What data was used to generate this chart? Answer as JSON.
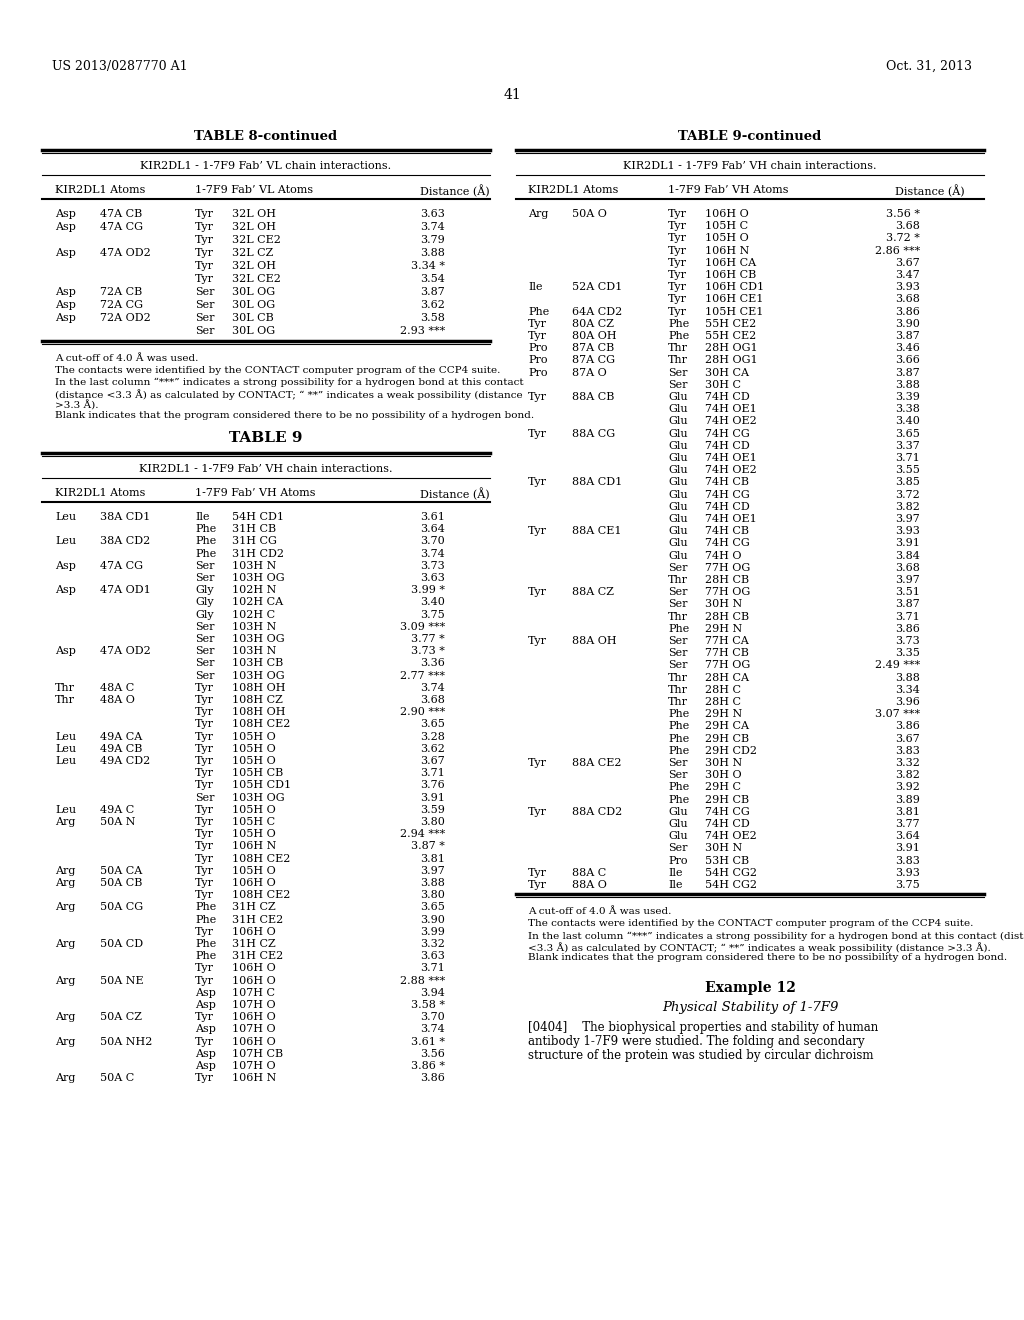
{
  "header_left": "US 2013/0287770 A1",
  "header_right": "Oct. 31, 2013",
  "page_number": "41",
  "bg_color": "#ffffff",
  "table8_title": "TABLE 8-continued",
  "table8_subtitle": "KIR2DL1 - 1-7F9 Fab’ VL chain interactions.",
  "table9_cont_title": "TABLE 9-continued",
  "table9_cont_subtitle": "KIR2DL1 - 1-7F9 Fab’ VH chain interactions.",
  "col_hdr_kir": "KIR2DL1 Atoms",
  "col_hdr_fab_vl": "1-7F9 Fab’ VL Atoms",
  "col_hdr_fab_vh": "1-7F9 Fab’ VH Atoms",
  "col_hdr_dist": "Distance (Å)",
  "table8_rows": [
    [
      "Asp",
      "47A CB",
      "Tyr",
      "32L OH",
      "3.63"
    ],
    [
      "Asp",
      "47A CG",
      "Tyr",
      "32L OH",
      "3.74"
    ],
    [
      "",
      "",
      "Tyr",
      "32L CE2",
      "3.79"
    ],
    [
      "Asp",
      "47A OD2",
      "Tyr",
      "32L CZ",
      "3.88"
    ],
    [
      "",
      "",
      "Tyr",
      "32L OH",
      "3.34 *"
    ],
    [
      "",
      "",
      "Tyr",
      "32L CE2",
      "3.54"
    ],
    [
      "Asp",
      "72A CB",
      "Ser",
      "30L OG",
      "3.87"
    ],
    [
      "Asp",
      "72A CG",
      "Ser",
      "30L OG",
      "3.62"
    ],
    [
      "Asp",
      "72A OD2",
      "Ser",
      "30L CB",
      "3.58"
    ],
    [
      "",
      "",
      "Ser",
      "30L OG",
      "2.93 ***"
    ]
  ],
  "table8_fn1": "A cut-off of 4.0 Å was used.",
  "table8_fn2": "The contacts were identified by the CONTACT computer program of the CCP4 suite.",
  "table8_fn3a": "In the last column “***” indicates a strong possibility for a hydrogen bond at this contact",
  "table8_fn3b": "(distance <3.3 Å) as calculated by CONTACT; “ **” indicates a weak possibility (distance",
  "table8_fn3c": ">3.3 Å).",
  "table8_fn4": "Blank indicates that the program considered there to be no possibility of a hydrogen bond.",
  "table9_title": "TABLE 9",
  "table9_subtitle": "KIR2DL1 - 1-7F9 Fab’ VH chain interactions.",
  "table9_left_rows": [
    [
      "Leu",
      "38A CD1",
      "Ile",
      "54H CD1",
      "3.61"
    ],
    [
      "",
      "",
      "Phe",
      "31H CB",
      "3.64"
    ],
    [
      "Leu",
      "38A CD2",
      "Phe",
      "31H CG",
      "3.70"
    ],
    [
      "",
      "",
      "Phe",
      "31H CD2",
      "3.74"
    ],
    [
      "Asp",
      "47A CG",
      "Ser",
      "103H N",
      "3.73"
    ],
    [
      "",
      "",
      "Ser",
      "103H OG",
      "3.63"
    ],
    [
      "Asp",
      "47A OD1",
      "Gly",
      "102H N",
      "3.99 *"
    ],
    [
      "",
      "",
      "Gly",
      "102H CA",
      "3.40"
    ],
    [
      "",
      "",
      "Gly",
      "102H C",
      "3.75"
    ],
    [
      "",
      "",
      "Ser",
      "103H N",
      "3.09 ***"
    ],
    [
      "",
      "",
      "Ser",
      "103H OG",
      "3.77 *"
    ],
    [
      "Asp",
      "47A OD2",
      "Ser",
      "103H N",
      "3.73 *"
    ],
    [
      "",
      "",
      "Ser",
      "103H CB",
      "3.36"
    ],
    [
      "",
      "",
      "Ser",
      "103H OG",
      "2.77 ***"
    ],
    [
      "Thr",
      "48A C",
      "Tyr",
      "108H OH",
      "3.74"
    ],
    [
      "Thr",
      "48A O",
      "Tyr",
      "108H CZ",
      "3.68"
    ],
    [
      "",
      "",
      "Tyr",
      "108H OH",
      "2.90 ***"
    ],
    [
      "",
      "",
      "Tyr",
      "108H CE2",
      "3.65"
    ],
    [
      "Leu",
      "49A CA",
      "Tyr",
      "105H O",
      "3.28"
    ],
    [
      "Leu",
      "49A CB",
      "Tyr",
      "105H O",
      "3.62"
    ],
    [
      "Leu",
      "49A CD2",
      "Tyr",
      "105H O",
      "3.67"
    ],
    [
      "",
      "",
      "Tyr",
      "105H CB",
      "3.71"
    ],
    [
      "",
      "",
      "Tyr",
      "105H CD1",
      "3.76"
    ],
    [
      "",
      "",
      "Ser",
      "103H OG",
      "3.91"
    ],
    [
      "Leu",
      "49A C",
      "Tyr",
      "105H O",
      "3.59"
    ],
    [
      "Arg",
      "50A N",
      "Tyr",
      "105H C",
      "3.80"
    ],
    [
      "",
      "",
      "Tyr",
      "105H O",
      "2.94 ***"
    ],
    [
      "",
      "",
      "Tyr",
      "106H N",
      "3.87 *"
    ],
    [
      "",
      "",
      "Tyr",
      "108H CE2",
      "3.81"
    ],
    [
      "Arg",
      "50A CA",
      "Tyr",
      "105H O",
      "3.97"
    ],
    [
      "Arg",
      "50A CB",
      "Tyr",
      "106H O",
      "3.88"
    ],
    [
      "",
      "",
      "Tyr",
      "108H CE2",
      "3.80"
    ],
    [
      "Arg",
      "50A CG",
      "Phe",
      "31H CZ",
      "3.65"
    ],
    [
      "",
      "",
      "Phe",
      "31H CE2",
      "3.90"
    ],
    [
      "",
      "",
      "Tyr",
      "106H O",
      "3.99"
    ],
    [
      "Arg",
      "50A CD",
      "Phe",
      "31H CZ",
      "3.32"
    ],
    [
      "",
      "",
      "Phe",
      "31H CE2",
      "3.63"
    ],
    [
      "",
      "",
      "Tyr",
      "106H O",
      "3.71"
    ],
    [
      "Arg",
      "50A NE",
      "Tyr",
      "106H O",
      "2.88 ***"
    ],
    [
      "",
      "",
      "Asp",
      "107H C",
      "3.94"
    ],
    [
      "",
      "",
      "Asp",
      "107H O",
      "3.58 *"
    ],
    [
      "Arg",
      "50A CZ",
      "Tyr",
      "106H O",
      "3.70"
    ],
    [
      "",
      "",
      "Asp",
      "107H O",
      "3.74"
    ],
    [
      "Arg",
      "50A NH2",
      "Tyr",
      "106H O",
      "3.61 *"
    ],
    [
      "",
      "",
      "Asp",
      "107H CB",
      "3.56"
    ],
    [
      "",
      "",
      "Asp",
      "107H O",
      "3.86 *"
    ],
    [
      "Arg",
      "50A C",
      "Tyr",
      "106H N",
      "3.86"
    ]
  ],
  "table9_right_rows": [
    [
      "Arg",
      "50A O",
      "Tyr",
      "106H O",
      "3.56 *"
    ],
    [
      "",
      "",
      "Tyr",
      "105H C",
      "3.68"
    ],
    [
      "",
      "",
      "Tyr",
      "105H O",
      "3.72 *"
    ],
    [
      "",
      "",
      "Tyr",
      "106H N",
      "2.86 ***"
    ],
    [
      "",
      "",
      "Tyr",
      "106H CA",
      "3.67"
    ],
    [
      "",
      "",
      "Tyr",
      "106H CB",
      "3.47"
    ],
    [
      "Ile",
      "52A CD1",
      "Tyr",
      "106H CD1",
      "3.93"
    ],
    [
      "",
      "",
      "Tyr",
      "106H CE1",
      "3.68"
    ],
    [
      "Phe",
      "64A CD2",
      "Tyr",
      "105H CE1",
      "3.86"
    ],
    [
      "Tyr",
      "80A CZ",
      "Phe",
      "55H CE2",
      "3.90"
    ],
    [
      "Tyr",
      "80A OH",
      "Phe",
      "55H CE2",
      "3.87"
    ],
    [
      "Pro",
      "87A CB",
      "Thr",
      "28H OG1",
      "3.46"
    ],
    [
      "Pro",
      "87A CG",
      "Thr",
      "28H OG1",
      "3.66"
    ],
    [
      "Pro",
      "87A O",
      "Ser",
      "30H CA",
      "3.87"
    ],
    [
      "",
      "",
      "Ser",
      "30H C",
      "3.88"
    ],
    [
      "Tyr",
      "88A CB",
      "Glu",
      "74H CD",
      "3.39"
    ],
    [
      "",
      "",
      "Glu",
      "74H OE1",
      "3.38"
    ],
    [
      "",
      "",
      "Glu",
      "74H OE2",
      "3.40"
    ],
    [
      "Tyr",
      "88A CG",
      "Glu",
      "74H CG",
      "3.65"
    ],
    [
      "",
      "",
      "Glu",
      "74H CD",
      "3.37"
    ],
    [
      "",
      "",
      "Glu",
      "74H OE1",
      "3.71"
    ],
    [
      "",
      "",
      "Glu",
      "74H OE2",
      "3.55"
    ],
    [
      "Tyr",
      "88A CD1",
      "Glu",
      "74H CB",
      "3.85"
    ],
    [
      "",
      "",
      "Glu",
      "74H CG",
      "3.72"
    ],
    [
      "",
      "",
      "Glu",
      "74H CD",
      "3.82"
    ],
    [
      "",
      "",
      "Glu",
      "74H OE1",
      "3.97"
    ],
    [
      "Tyr",
      "88A CE1",
      "Glu",
      "74H CB",
      "3.93"
    ],
    [
      "",
      "",
      "Glu",
      "74H CG",
      "3.91"
    ],
    [
      "",
      "",
      "Glu",
      "74H O",
      "3.84"
    ],
    [
      "",
      "",
      "Ser",
      "77H OG",
      "3.68"
    ],
    [
      "",
      "",
      "Thr",
      "28H CB",
      "3.97"
    ],
    [
      "Tyr",
      "88A CZ",
      "Ser",
      "77H OG",
      "3.51"
    ],
    [
      "",
      "",
      "Ser",
      "30H N",
      "3.87"
    ],
    [
      "",
      "",
      "Thr",
      "28H CB",
      "3.71"
    ],
    [
      "",
      "",
      "Phe",
      "29H N",
      "3.86"
    ],
    [
      "Tyr",
      "88A OH",
      "Ser",
      "77H CA",
      "3.73"
    ],
    [
      "",
      "",
      "Ser",
      "77H CB",
      "3.35"
    ],
    [
      "",
      "",
      "Ser",
      "77H OG",
      "2.49 ***"
    ],
    [
      "",
      "",
      "Thr",
      "28H CA",
      "3.88"
    ],
    [
      "",
      "",
      "Thr",
      "28H C",
      "3.34"
    ],
    [
      "",
      "",
      "Thr",
      "28H C",
      "3.96"
    ],
    [
      "",
      "",
      "Phe",
      "29H N",
      "3.07 ***"
    ],
    [
      "",
      "",
      "Phe",
      "29H CA",
      "3.86"
    ],
    [
      "",
      "",
      "Phe",
      "29H CB",
      "3.67"
    ],
    [
      "",
      "",
      "Phe",
      "29H CD2",
      "3.83"
    ],
    [
      "Tyr",
      "88A CE2",
      "Ser",
      "30H N",
      "3.32"
    ],
    [
      "",
      "",
      "Ser",
      "30H O",
      "3.82"
    ],
    [
      "",
      "",
      "Phe",
      "29H C",
      "3.92"
    ],
    [
      "",
      "",
      "Phe",
      "29H CB",
      "3.89"
    ],
    [
      "Tyr",
      "88A CD2",
      "Glu",
      "74H CG",
      "3.81"
    ],
    [
      "",
      "",
      "Glu",
      "74H CD",
      "3.77"
    ],
    [
      "",
      "",
      "Glu",
      "74H OE2",
      "3.64"
    ],
    [
      "",
      "",
      "Ser",
      "30H N",
      "3.91"
    ],
    [
      "",
      "",
      "Pro",
      "53H CB",
      "3.83"
    ],
    [
      "Tyr",
      "88A C",
      "Ile",
      "54H CG2",
      "3.93"
    ],
    [
      "Tyr",
      "88A O",
      "Ile",
      "54H CG2",
      "3.75"
    ]
  ],
  "table9_fn1": "A cut-off of 4.0 Å was used.",
  "table9_fn2": "The contacts were identified by the CONTACT computer program of the CCP4 suite.",
  "table9_fn3a": "In the last column “***” indicates a strong possibility for a hydrogen bond at this contact (distance",
  "table9_fn3b": "<3.3 Å) as calculated by CONTACT; “ **” indicates a weak possibility (distance >3.3 Å).",
  "table9_fn4": "Blank indicates that the program considered there to be no possibility of a hydrogen bond.",
  "ex12_heading": "Example 12",
  "ex12_sub": "Physical Stability of 1-7F9",
  "ex12_p1": "[0404]    The biophysical properties and stability of human",
  "ex12_p2": "antibody 1-7F9 were studied. The folding and secondary",
  "ex12_p3": "structure of the protein was studied by circular dichroism"
}
